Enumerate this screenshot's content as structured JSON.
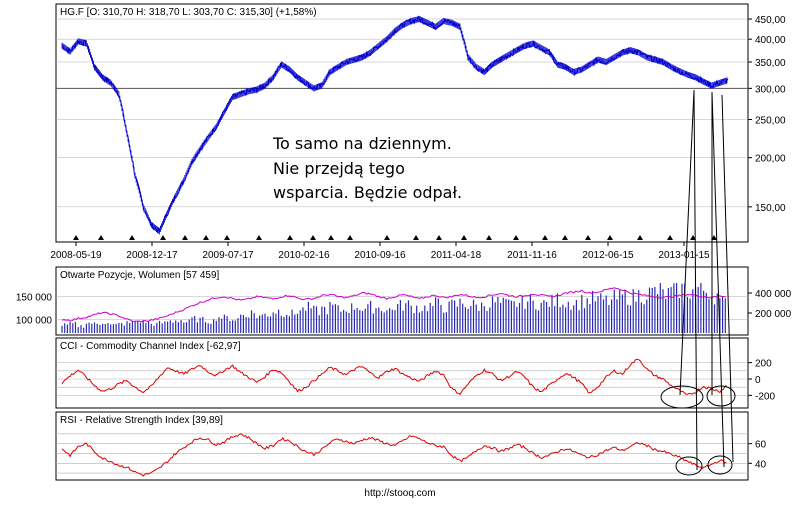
{
  "footer": "http://stooq.com",
  "annotation": {
    "lines": [
      "To samo na dziennym.",
      "Nie przejdą tego",
      "wsparcia. Będzie odpał."
    ]
  },
  "colors": {
    "price": "#0000cc",
    "oi": "#cc00cc",
    "volume": "#2a2ab0",
    "cci": "#dd0000",
    "rsi": "#dd0000",
    "frame": "#000000",
    "grid": "#b0b0b0"
  },
  "chart_data": [
    {
      "type": "line",
      "title": "HG.F [O: 310,70  H: 318,70  L: 303,70  C: 315,30] (+1,58%)",
      "x_tick_labels": [
        "2008-05-19",
        "2008-12-17",
        "2009-07-17",
        "2010-02-16",
        "2010-09-16",
        "2011-04-18",
        "2011-11-16",
        "2012-06-15",
        "2013-01-15"
      ],
      "y_tick_labels": [
        "450,00",
        "400,00",
        "350,00",
        "300,00",
        "250,00",
        "200,00",
        "150,00"
      ],
      "y_ticks": [
        450,
        400,
        350,
        300,
        250,
        200,
        150
      ],
      "ylim": [
        125,
        480
      ],
      "y_scale": "log",
      "horizontal_line": 300,
      "series": [
        {
          "values": [
            385,
            372,
            395,
            390,
            340,
            320,
            310,
            290,
            230,
            180,
            150,
            135,
            130,
            145,
            160,
            175,
            195,
            210,
            225,
            240,
            262,
            285,
            290,
            295,
            298,
            305,
            320,
            345,
            335,
            320,
            310,
            300,
            305,
            330,
            340,
            350,
            355,
            360,
            370,
            385,
            400,
            420,
            435,
            445,
            450,
            440,
            430,
            445,
            440,
            430,
            360,
            340,
            330,
            345,
            355,
            365,
            375,
            385,
            390,
            380,
            370,
            345,
            340,
            330,
            335,
            345,
            355,
            350,
            360,
            370,
            375,
            370,
            360,
            355,
            350,
            340,
            332,
            325,
            320,
            312,
            305,
            310,
            315
          ]
        }
      ]
    },
    {
      "type": "bar",
      "title": "Otwarte Pozycje, Wolumen [57 459]",
      "y_tick_labels_left": [
        "150 000",
        "100 000"
      ],
      "y_ticks_left": [
        150000,
        100000
      ],
      "y_tick_labels_right": [
        "400 000",
        "200 000"
      ],
      "y_ticks_right": [
        400000,
        200000
      ],
      "series": [
        {
          "type": "line",
          "values": [
            100000,
            98000,
            102000,
            105000,
            110000,
            115000,
            112000,
            108000,
            100000,
            95000,
            96000,
            98000,
            102000,
            108000,
            115000,
            122000,
            130000,
            137000,
            143000,
            148000,
            150000,
            146000,
            142000,
            145000,
            150000,
            148000,
            145000,
            150000,
            153000,
            147000,
            144000,
            146000,
            152000,
            155000,
            150000,
            148000,
            152000,
            158000,
            156000,
            150000,
            146000,
            150000,
            154000,
            150000,
            145000,
            150000,
            153000,
            148000,
            150000,
            155000,
            152000,
            148000,
            150000,
            154000,
            157000,
            153000,
            150000,
            152000,
            156000,
            153000,
            150000,
            152000,
            158000,
            160000,
            163000,
            158000,
            160000,
            165000,
            170000,
            165000,
            158000,
            155000,
            152000,
            150000,
            148000,
            150000,
            152000,
            155000,
            153000,
            150000,
            148000,
            152000,
            150000
          ]
        },
        {
          "type": "bar",
          "values": [
            80000,
            90000,
            70000,
            100000,
            90000,
            110000,
            80000,
            90000,
            100000,
            120000,
            110000,
            90000,
            100000,
            120000,
            130000,
            110000,
            140000,
            130000,
            120000,
            160000,
            150000,
            140000,
            180000,
            200000,
            170000,
            190000,
            220000,
            210000,
            190000,
            230000,
            250000,
            220000,
            240000,
            260000,
            230000,
            250000,
            270000,
            240000,
            260000,
            250000,
            230000,
            270000,
            280000,
            260000,
            250000,
            270000,
            290000,
            260000,
            280000,
            300000,
            280000,
            270000,
            290000,
            310000,
            290000,
            280000,
            300000,
            320000,
            300000,
            290000,
            310000,
            330000,
            310000,
            300000,
            320000,
            340000,
            330000,
            320000,
            350000,
            370000,
            360000,
            380000,
            400000,
            420000,
            390000,
            410000,
            440000,
            420000,
            450000,
            430000,
            380000,
            300000,
            250000
          ]
        }
      ]
    },
    {
      "type": "line",
      "title": "CCI - Commodity Channel Index [-62,97]",
      "y_tick_labels": [
        "200",
        "0",
        "-200"
      ],
      "y_ticks": [
        200,
        0,
        -200
      ],
      "ylim": [
        -330,
        330
      ],
      "series": [
        {
          "values": [
            -50,
            40,
            110,
            20,
            -80,
            -150,
            -120,
            -60,
            -20,
            -100,
            -160,
            -90,
            30,
            140,
            100,
            60,
            120,
            170,
            90,
            40,
            110,
            160,
            80,
            20,
            -40,
            30,
            120,
            80,
            -30,
            -150,
            -100,
            -20,
            60,
            140,
            100,
            50,
            120,
            150,
            70,
            20,
            90,
            130,
            60,
            10,
            -30,
            40,
            100,
            50,
            -120,
            -180,
            -60,
            40,
            110,
            60,
            -20,
            30,
            90,
            20,
            -100,
            -160,
            -80,
            0,
            70,
            20,
            -60,
            -180,
            -90,
            20,
            100,
            60,
            180,
            250,
            120,
            40,
            0,
            -80,
            -140,
            -200,
            -160,
            -90,
            -120,
            -150,
            -63
          ]
        }
      ]
    },
    {
      "type": "line",
      "title": "RSI - Relative Strength Index [39,89]",
      "y_tick_labels": [
        "60",
        "40"
      ],
      "y_ticks": [
        60,
        40
      ],
      "ylim": [
        25,
        78
      ],
      "series": [
        {
          "values": [
            55,
            48,
            57,
            60,
            52,
            45,
            42,
            38,
            36,
            31,
            28,
            30,
            35,
            42,
            50,
            56,
            62,
            66,
            64,
            59,
            62,
            67,
            70,
            66,
            60,
            55,
            58,
            65,
            63,
            57,
            52,
            49,
            54,
            61,
            65,
            62,
            60,
            64,
            66,
            63,
            60,
            58,
            63,
            68,
            65,
            61,
            58,
            57,
            48,
            42,
            46,
            53,
            58,
            56,
            52,
            55,
            59,
            56,
            50,
            46,
            48,
            52,
            55,
            52,
            48,
            46,
            49,
            53,
            56,
            53,
            57,
            61,
            58,
            54,
            52,
            49,
            46,
            42,
            38,
            35,
            39,
            43,
            40
          ]
        }
      ]
    }
  ]
}
